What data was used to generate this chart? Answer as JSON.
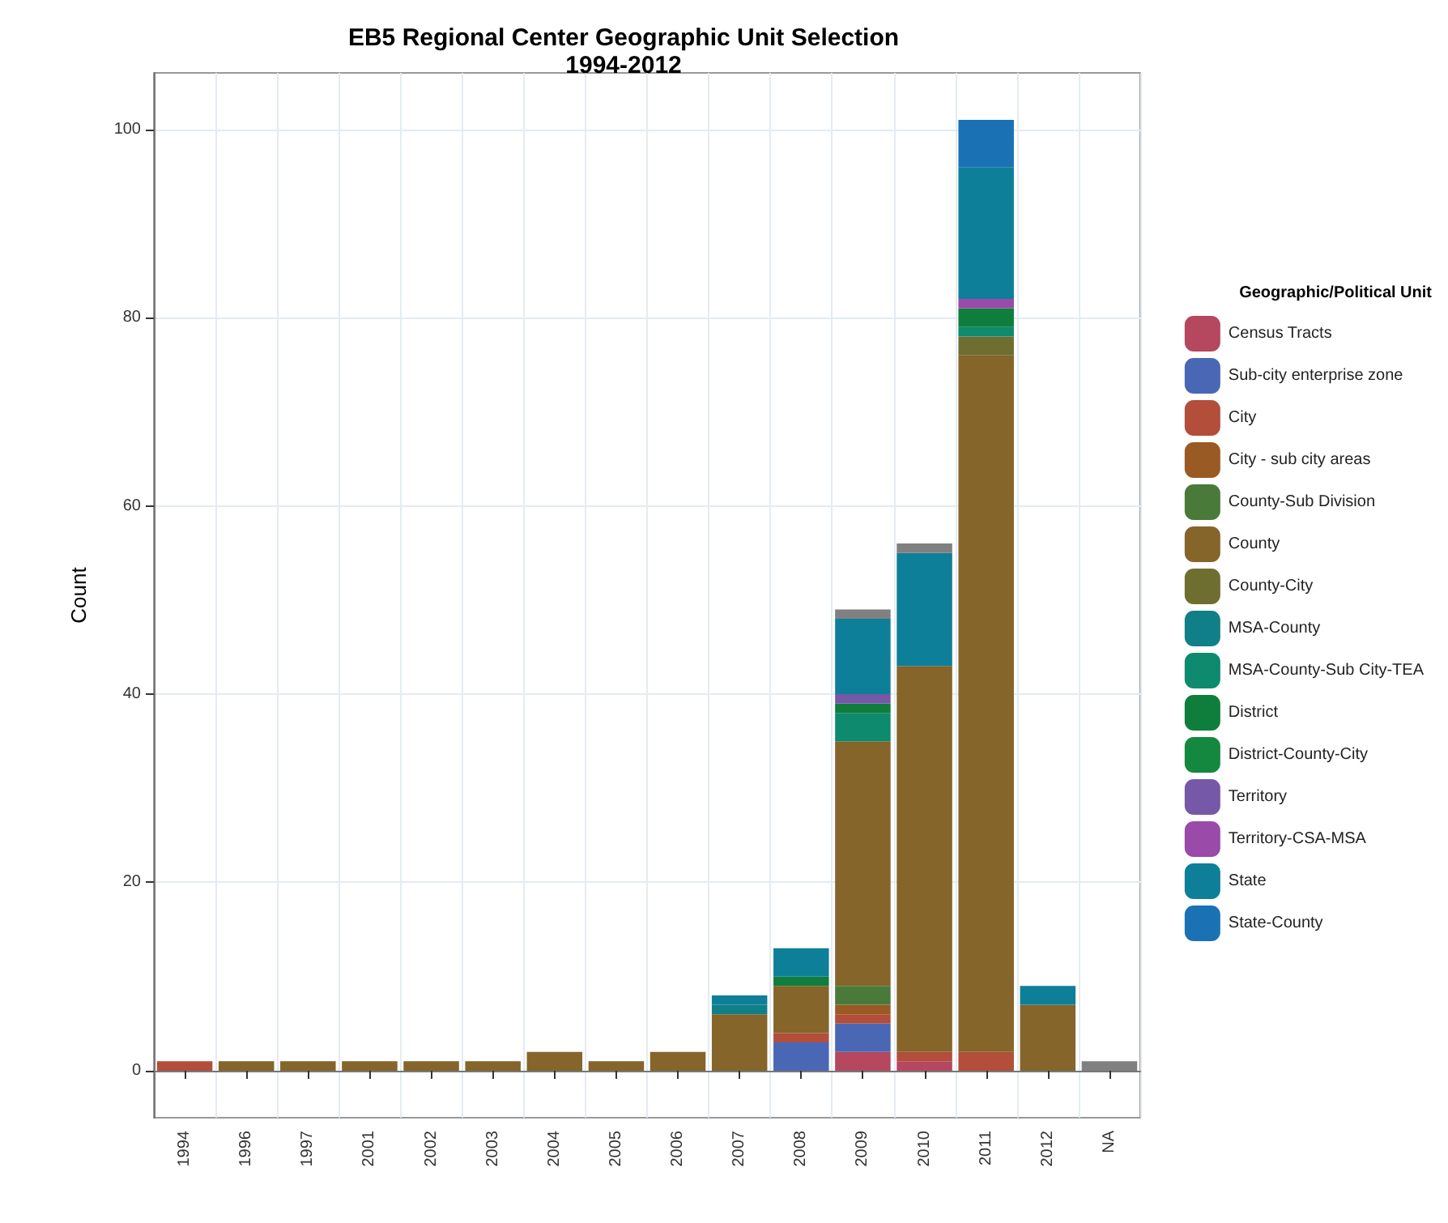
{
  "chart_data": {
    "type": "bar",
    "title": "EB5 Regional Center Geographic Unit Selection\n1994-2012",
    "ylabel": "Count",
    "legend_title": "Geographic/Political Unit",
    "stacked": true,
    "grid": true,
    "legend": "right",
    "categories": [
      "1994",
      "1996",
      "1997",
      "2001",
      "2002",
      "2003",
      "2004",
      "2005",
      "2006",
      "2007",
      "2008",
      "2009",
      "2010",
      "2011",
      "2012",
      "NA"
    ],
    "ylim": [
      -5,
      106
    ],
    "yticks": [
      0,
      20,
      40,
      60,
      80,
      100
    ],
    "series": [
      {
        "name": "Census Tracts",
        "color": "#b5475f",
        "values": [
          0,
          0,
          0,
          0,
          0,
          0,
          0,
          0,
          0,
          0,
          0,
          2,
          1,
          0,
          0,
          0
        ]
      },
      {
        "name": "Sub-city enterprise zone",
        "color": "#4a67b5",
        "values": [
          0,
          0,
          0,
          0,
          0,
          0,
          0,
          0,
          0,
          0,
          3,
          3,
          0,
          0,
          0,
          0
        ]
      },
      {
        "name": "City",
        "color": "#b24e3a",
        "values": [
          1,
          0,
          0,
          0,
          0,
          0,
          0,
          0,
          0,
          0,
          1,
          1,
          1,
          2,
          0,
          0
        ]
      },
      {
        "name": "City - sub city areas",
        "color": "#9a5a24",
        "values": [
          0,
          0,
          0,
          0,
          0,
          0,
          0,
          0,
          0,
          0,
          0,
          1,
          0,
          0,
          0,
          0
        ]
      },
      {
        "name": "County-Sub Division",
        "color": "#4a7a3a",
        "values": [
          0,
          0,
          0,
          0,
          0,
          0,
          0,
          0,
          0,
          0,
          0,
          2,
          0,
          0,
          0,
          0
        ]
      },
      {
        "name": "County",
        "color": "#85652a",
        "values": [
          0,
          1,
          1,
          1,
          1,
          1,
          2,
          1,
          2,
          6,
          5,
          26,
          41,
          74,
          7,
          0
        ]
      },
      {
        "name": "County-City",
        "color": "#6e6e30",
        "values": [
          0,
          0,
          0,
          0,
          0,
          0,
          0,
          0,
          0,
          0,
          0,
          0,
          0,
          2,
          0,
          0
        ]
      },
      {
        "name": "MSA-County",
        "color": "#117f87",
        "values": [
          0,
          0,
          0,
          0,
          0,
          0,
          0,
          0,
          0,
          1,
          0,
          0,
          0,
          0,
          0,
          0
        ]
      },
      {
        "name": "MSA-County-Sub City-TEA",
        "color": "#0e8a6e",
        "values": [
          0,
          0,
          0,
          0,
          0,
          0,
          0,
          0,
          0,
          0,
          0,
          3,
          0,
          1,
          0,
          0
        ]
      },
      {
        "name": "District",
        "color": "#0f7e3c",
        "values": [
          0,
          0,
          0,
          0,
          0,
          0,
          0,
          0,
          0,
          0,
          1,
          1,
          0,
          2,
          0,
          0
        ]
      },
      {
        "name": "District-County-City",
        "color": "#15883f",
        "values": [
          0,
          0,
          0,
          0,
          0,
          0,
          0,
          0,
          0,
          0,
          0,
          0,
          0,
          0,
          0,
          0
        ]
      },
      {
        "name": "Territory",
        "color": "#7559a8",
        "values": [
          0,
          0,
          0,
          0,
          0,
          0,
          0,
          0,
          0,
          0,
          0,
          1,
          0,
          0,
          0,
          0
        ]
      },
      {
        "name": "Territory-CSA-MSA",
        "color": "#9a4aa8",
        "values": [
          0,
          0,
          0,
          0,
          0,
          0,
          0,
          0,
          0,
          0,
          0,
          0,
          0,
          1,
          0,
          0
        ]
      },
      {
        "name": "State",
        "color": "#0e7f99",
        "values": [
          0,
          0,
          0,
          0,
          0,
          0,
          0,
          0,
          0,
          1,
          3,
          8,
          12,
          14,
          2,
          0
        ]
      },
      {
        "name": "State-County",
        "color": "#1a72b5",
        "values": [
          0,
          0,
          0,
          0,
          0,
          0,
          0,
          0,
          0,
          0,
          0,
          0,
          0,
          5,
          0,
          0
        ]
      },
      {
        "color": "#808080",
        "values": [
          0,
          0,
          0,
          0,
          0,
          0,
          0,
          0,
          0,
          0,
          0,
          1,
          1,
          0,
          0,
          1
        ]
      }
    ]
  }
}
